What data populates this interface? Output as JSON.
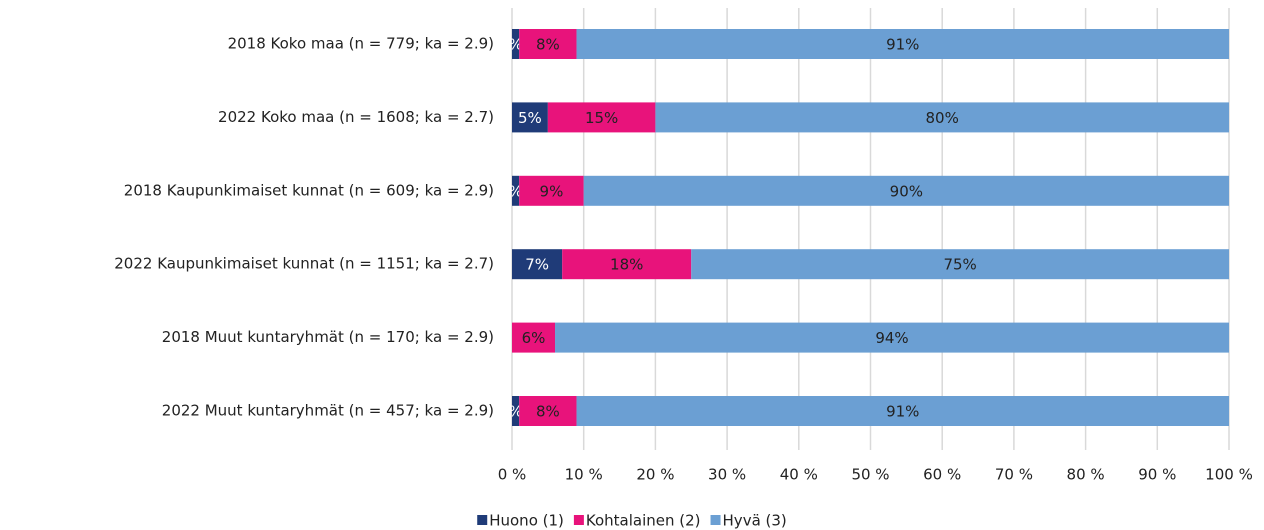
{
  "chart_data": {
    "type": "stacked_barh",
    "categories": [
      "2018 Koko maa (n = 779; ka = 2.9)",
      "2022 Koko maa (n = 1608; ka = 2.7)",
      "2018 Kaupunkimaiset kunnat (n = 609; ka = 2.9)",
      "2022 Kaupunkimaiset kunnat (n = 1151; ka = 2.7)",
      "2018 Muut kuntaryhmät (n = 170; ka = 2.9)",
      "2022 Muut kuntaryhmät (n = 457; ka = 2.9)"
    ],
    "series": [
      {
        "name": "Huono (1)",
        "color": "#1f3b78",
        "label_color": "#ffffff",
        "values": [
          1,
          5,
          1,
          7,
          0,
          1
        ],
        "value_labels": [
          "%",
          "5%",
          "%",
          "7%",
          null,
          "%"
        ]
      },
      {
        "name": "Kohtalainen (2)",
        "color": "#e8137b",
        "label_color": "#222222",
        "values": [
          8,
          15,
          9,
          18,
          6,
          8
        ],
        "value_labels": [
          "8%",
          "15%",
          "9%",
          "18%",
          "6%",
          "8%"
        ]
      },
      {
        "name": "Hyvä (3)",
        "color": "#6b9fd3",
        "label_color": "#222222",
        "values": [
          91,
          80,
          90,
          75,
          94,
          91
        ],
        "value_labels": [
          "91%",
          "80%",
          "90%",
          "75%",
          "94%",
          "91%"
        ]
      }
    ],
    "xlim": [
      0,
      100
    ],
    "xticks": [
      {
        "value": 0,
        "label": "0 %"
      },
      {
        "value": 10,
        "label": "10 %"
      },
      {
        "value": 20,
        "label": "20 %"
      },
      {
        "value": 30,
        "label": "30 %"
      },
      {
        "value": 40,
        "label": "40 %"
      },
      {
        "value": 50,
        "label": "50 %"
      },
      {
        "value": 60,
        "label": "60 %"
      },
      {
        "value": 70,
        "label": "70 %"
      },
      {
        "value": 80,
        "label": "80 %"
      },
      {
        "value": 90,
        "label": "90 %"
      },
      {
        "value": 100,
        "label": "100 %"
      }
    ],
    "grid": true,
    "legend": "bottom"
  }
}
